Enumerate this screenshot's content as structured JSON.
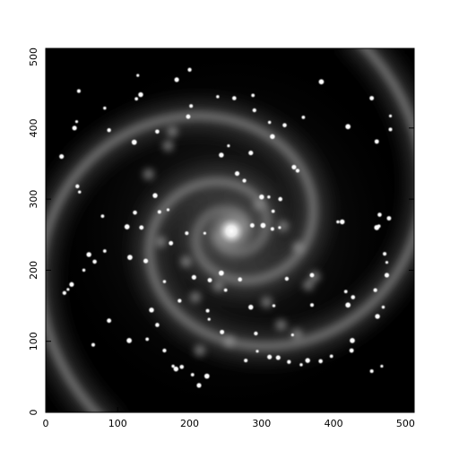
{
  "image": {
    "subject": "spiral galaxy with foreground stars",
    "colormap": "grayscale",
    "background_color": "#000000",
    "frame_color": "#000000"
  },
  "axes": {
    "x": {
      "range": [
        0,
        512
      ],
      "ticks": [
        {
          "value": 0,
          "label": "0"
        },
        {
          "value": 100,
          "label": "100"
        },
        {
          "value": 200,
          "label": "200"
        },
        {
          "value": 300,
          "label": "300"
        },
        {
          "value": 400,
          "label": "400"
        },
        {
          "value": 500,
          "label": "500"
        }
      ]
    },
    "y": {
      "range": [
        0,
        512
      ],
      "ticks": [
        {
          "value": 0,
          "label": "0"
        },
        {
          "value": 100,
          "label": "100"
        },
        {
          "value": 200,
          "label": "200"
        },
        {
          "value": 300,
          "label": "300"
        },
        {
          "value": 400,
          "label": "400"
        },
        {
          "value": 500,
          "label": "500"
        }
      ]
    }
  },
  "galaxy": {
    "core": [
      258,
      255
    ],
    "arm_turns": 1.6
  },
  "stars": [
    [
      128,
      474
    ],
    [
      182,
      468
    ],
    [
      200,
      482
    ],
    [
      239,
      444
    ],
    [
      244,
      362
    ],
    [
      262,
      442
    ],
    [
      288,
      446
    ],
    [
      383,
      465
    ],
    [
      453,
      442
    ],
    [
      46,
      452
    ],
    [
      43,
      409
    ],
    [
      40,
      400
    ],
    [
      88,
      397
    ],
    [
      82,
      428
    ],
    [
      132,
      447
    ],
    [
      155,
      395
    ],
    [
      126,
      441
    ],
    [
      123,
      380
    ],
    [
      198,
      416
    ],
    [
      202,
      431
    ],
    [
      254,
      375
    ],
    [
      285,
      365
    ],
    [
      290,
      425
    ],
    [
      311,
      408
    ],
    [
      315,
      388
    ],
    [
      332,
      404
    ],
    [
      358,
      415
    ],
    [
      420,
      402
    ],
    [
      460,
      381
    ],
    [
      479,
      398
    ],
    [
      479,
      417
    ],
    [
      22,
      360
    ],
    [
      44,
      318
    ],
    [
      47,
      310
    ],
    [
      152,
      305
    ],
    [
      124,
      281
    ],
    [
      79,
      276
    ],
    [
      113,
      261
    ],
    [
      133,
      260
    ],
    [
      158,
      282
    ],
    [
      170,
      285
    ],
    [
      266,
      336
    ],
    [
      276,
      326
    ],
    [
      310,
      303
    ],
    [
      300,
      303
    ],
    [
      326,
      300
    ],
    [
      316,
      283
    ],
    [
      302,
      263
    ],
    [
      287,
      263
    ],
    [
      315,
      258
    ],
    [
      325,
      260
    ],
    [
      345,
      345
    ],
    [
      350,
      340
    ],
    [
      406,
      268
    ],
    [
      412,
      268
    ],
    [
      464,
      278
    ],
    [
      463,
      262
    ],
    [
      460,
      260
    ],
    [
      477,
      273
    ],
    [
      471,
      223
    ],
    [
      474,
      211
    ],
    [
      474,
      193
    ],
    [
      458,
      172
    ],
    [
      469,
      148
    ],
    [
      461,
      135
    ],
    [
      427,
      162
    ],
    [
      417,
      170
    ],
    [
      420,
      151
    ],
    [
      370,
      193
    ],
    [
      370,
      151
    ],
    [
      343,
      109
    ],
    [
      311,
      78
    ],
    [
      335,
      188
    ],
    [
      317,
      150
    ],
    [
      285,
      148
    ],
    [
      270,
      187
    ],
    [
      250,
      172
    ],
    [
      244,
      196
    ],
    [
      228,
      186
    ],
    [
      225,
      143
    ],
    [
      227,
      131
    ],
    [
      206,
      190
    ],
    [
      186,
      157
    ],
    [
      165,
      184
    ],
    [
      147,
      144
    ],
    [
      155,
      123
    ],
    [
      141,
      103
    ],
    [
      116,
      101
    ],
    [
      88,
      129
    ],
    [
      66,
      95
    ],
    [
      31,
      173
    ],
    [
      36,
      180
    ],
    [
      26,
      168
    ],
    [
      53,
      200
    ],
    [
      60,
      222
    ],
    [
      68,
      212
    ],
    [
      82,
      227
    ],
    [
      117,
      218
    ],
    [
      174,
      238
    ],
    [
      196,
      252
    ],
    [
      221,
      252
    ],
    [
      139,
      213
    ],
    [
      165,
      87
    ],
    [
      177,
      65
    ],
    [
      181,
      61
    ],
    [
      189,
      64
    ],
    [
      204,
      53
    ],
    [
      224,
      51
    ],
    [
      245,
      113
    ],
    [
      278,
      73
    ],
    [
      294,
      86
    ],
    [
      323,
      77
    ],
    [
      338,
      71
    ],
    [
      355,
      67
    ],
    [
      364,
      73
    ],
    [
      382,
      72
    ],
    [
      397,
      79
    ],
    [
      426,
      101
    ],
    [
      425,
      87
    ],
    [
      453,
      58
    ],
    [
      467,
      65
    ],
    [
      213,
      38
    ],
    [
      292,
      111
    ]
  ],
  "nebula_knots": [
    [
      296,
      292
    ],
    [
      330,
      262
    ],
    [
      351,
      232
    ],
    [
      374,
      191
    ],
    [
      365,
      179
    ],
    [
      307,
      155
    ],
    [
      240,
      178
    ],
    [
      208,
      162
    ],
    [
      195,
      212
    ],
    [
      160,
      240
    ],
    [
      143,
      335
    ],
    [
      170,
      375
    ],
    [
      176,
      395
    ],
    [
      327,
      123
    ],
    [
      349,
      110
    ],
    [
      255,
      100
    ],
    [
      214,
      87
    ]
  ]
}
